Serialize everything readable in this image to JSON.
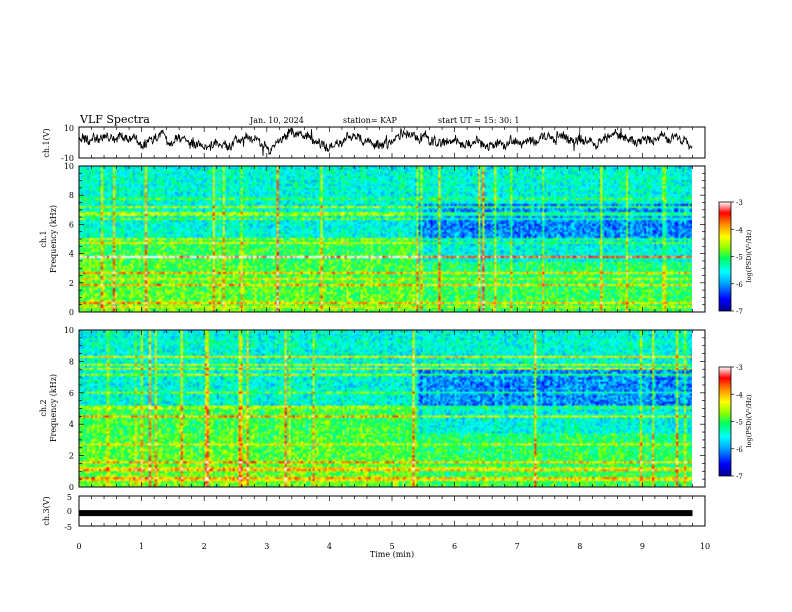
{
  "header": {
    "title": "VLF Spectra",
    "date": "Jan. 10, 2024",
    "station": "station= KAP",
    "start_time": "start  UT  =   15: 30: 1"
  },
  "chart_data": [
    {
      "id": "ch1-waveform",
      "type": "line",
      "ylabel": "ch.1(V)",
      "ylim": [
        -10,
        10
      ],
      "y_ticks": [
        "10",
        "-10"
      ],
      "x_range_min": [
        0,
        10
      ],
      "description_series": "ch.1 voltage trace",
      "data_x_max": 9.8
    },
    {
      "id": "ch1-spectrogram",
      "type": "heatmap",
      "ylabel_lines": [
        "ch.1",
        "Frequency (kHz)"
      ],
      "ylim": [
        0,
        10
      ],
      "y_ticks": [
        "0",
        "2",
        "4",
        "6",
        "8",
        "10"
      ],
      "x_range_min": [
        0,
        10
      ],
      "data_x_max": 9.8,
      "regime_change_min": 5.4,
      "colorbar": {
        "label": "log(PSD)(V²/Hz)",
        "range": [
          -7,
          -3
        ],
        "ticks": [
          "-3",
          "-4",
          "-5",
          "-6",
          "-7"
        ]
      }
    },
    {
      "id": "ch2-spectrogram",
      "type": "heatmap",
      "ylabel_lines": [
        "ch.2",
        "Frequency (kHz)"
      ],
      "ylim": [
        0,
        10
      ],
      "y_ticks": [
        "0",
        "2",
        "4",
        "6",
        "8",
        "10"
      ],
      "x_range_min": [
        0,
        10
      ],
      "data_x_max": 9.8,
      "regime_change_min": 5.4,
      "colorbar": {
        "label": "log(PSD)(V²/Hz)",
        "range": [
          -7,
          -3
        ],
        "ticks": [
          "-3",
          "-4",
          "-5",
          "-6",
          "-7"
        ]
      }
    },
    {
      "id": "ch3-waveform",
      "type": "line",
      "ylabel": "ch.3(V)",
      "ylim": [
        -5,
        5
      ],
      "y_ticks": [
        "5",
        "0",
        "-5"
      ],
      "x_range_min": [
        0,
        10
      ],
      "data_x_max": 9.8,
      "level": -0.7
    }
  ],
  "x_axis": {
    "label": "Time  (min)",
    "ticks": [
      "0",
      "1",
      "2",
      "3",
      "4",
      "5",
      "6",
      "7",
      "8",
      "9",
      "10"
    ]
  },
  "colors": {
    "axis": "#000000",
    "trace": "#000000",
    "colormap": [
      "#000090",
      "#0000ff",
      "#00a0ff",
      "#00ffff",
      "#00ff60",
      "#90ff00",
      "#ffff00",
      "#ff9000",
      "#ff0000",
      "#ffffff"
    ]
  }
}
